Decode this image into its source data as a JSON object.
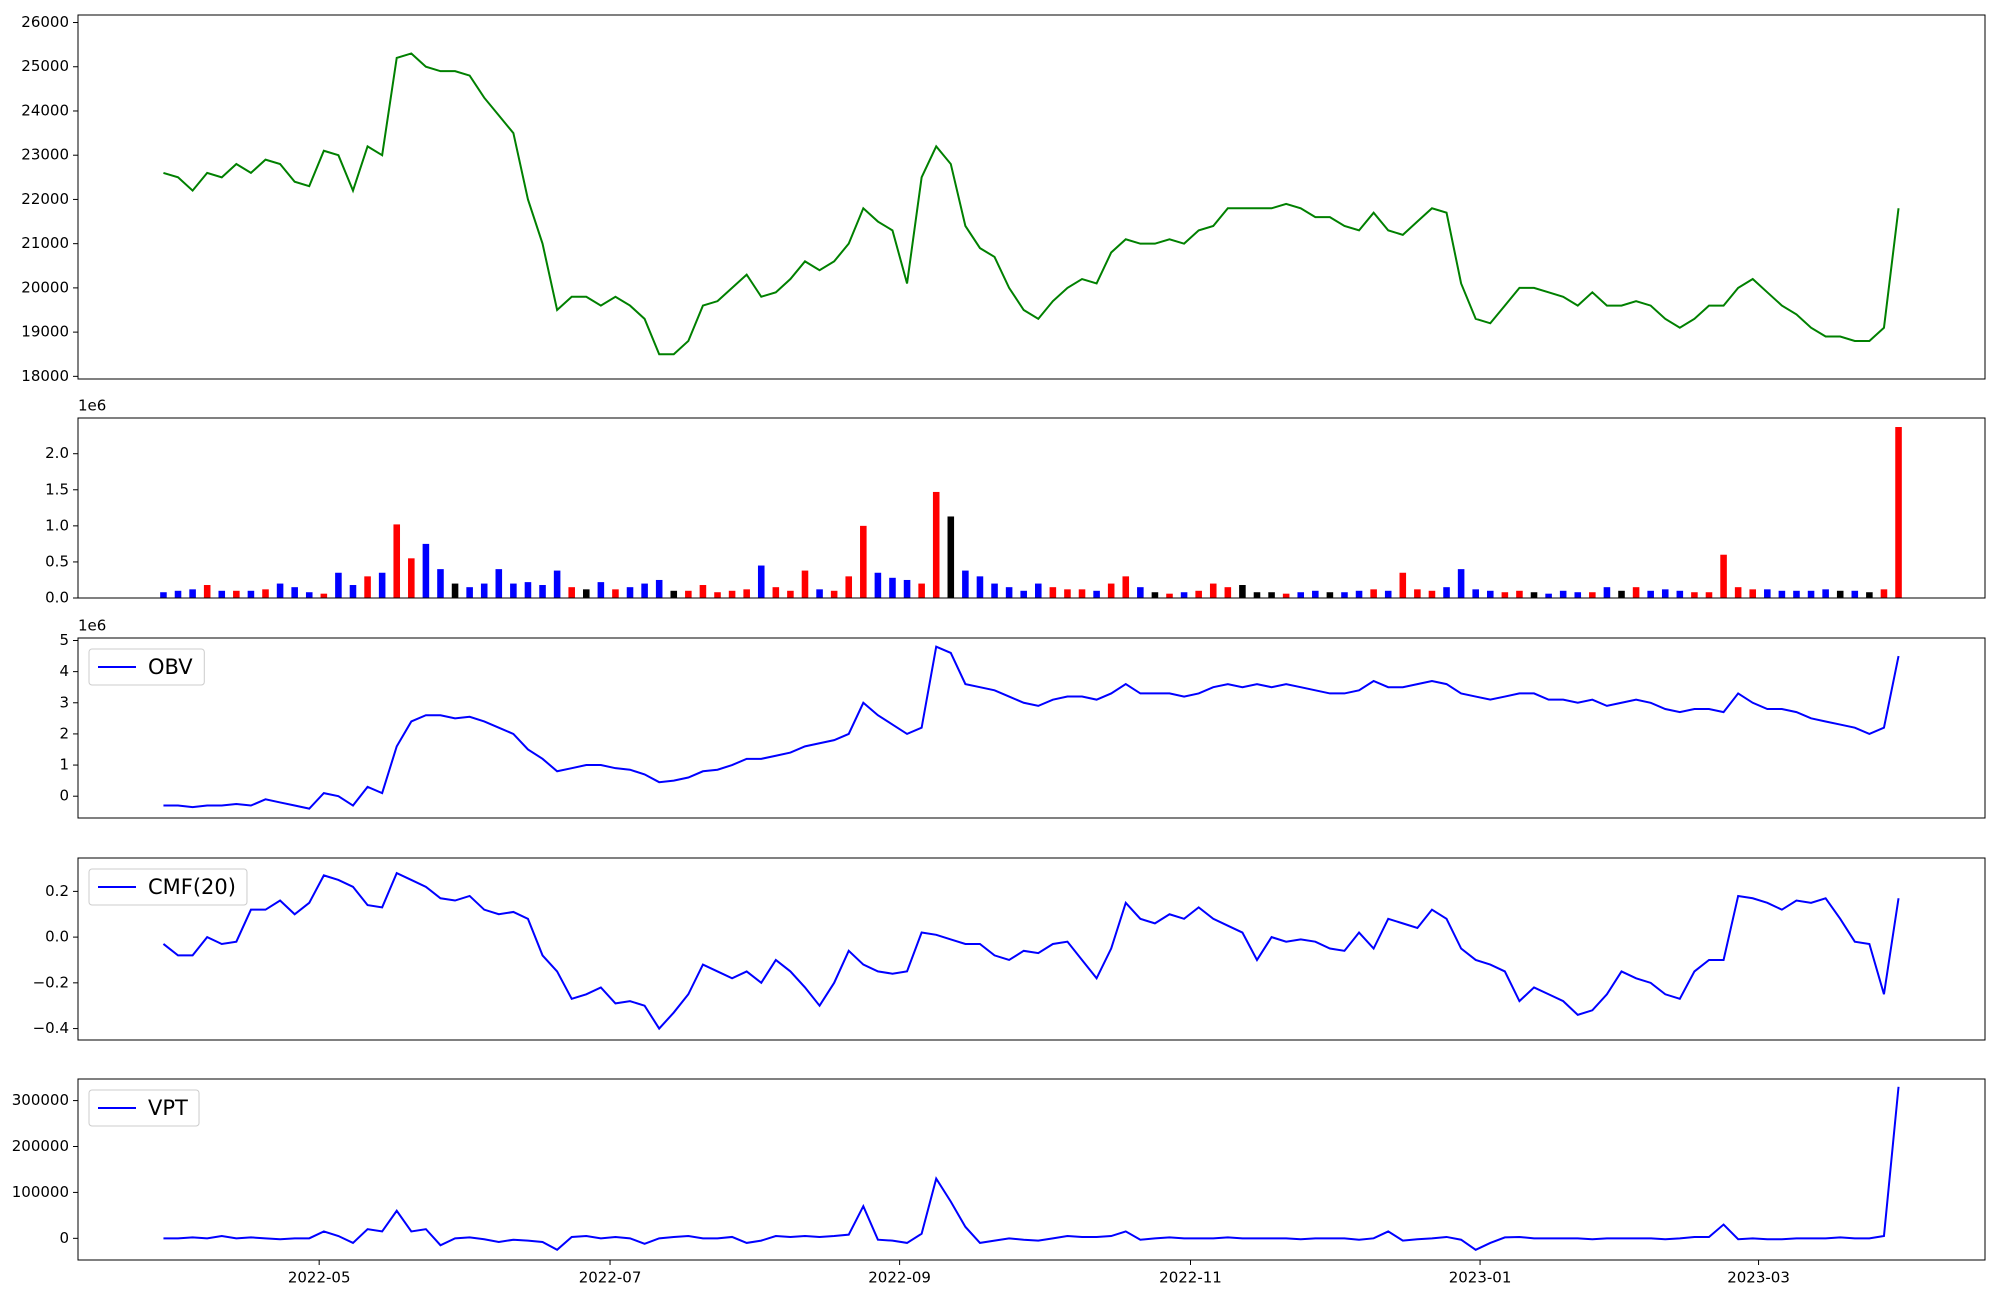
{
  "chart_data": [
    {
      "type": "line",
      "color": "#008000",
      "xlim": [
        -5.86,
        124.93
      ],
      "ylim": [
        17940,
        26170
      ],
      "yticks": [
        18000,
        19000,
        20000,
        21000,
        22000,
        23000,
        24000,
        25000,
        26000
      ],
      "values": [
        22600,
        22500,
        22200,
        22600,
        22500,
        22800,
        22600,
        22900,
        22800,
        22400,
        22300,
        23100,
        23000,
        22200,
        23200,
        23000,
        25200,
        25300,
        25000,
        24900,
        24900,
        24800,
        24300,
        23900,
        23500,
        22000,
        21000,
        19500,
        19800,
        19800,
        19600,
        19800,
        19600,
        19300,
        18500,
        18500,
        18800,
        19600,
        19700,
        20000,
        20300,
        19800,
        19900,
        20200,
        20600,
        20400,
        20600,
        21000,
        21800,
        21500,
        21300,
        20100,
        22500,
        23200,
        22800,
        21400,
        20900,
        20700,
        20000,
        19500,
        19300,
        19700,
        20000,
        20200,
        20100,
        20800,
        21100,
        21000,
        21000,
        21100,
        21000,
        21300,
        21400,
        21800,
        21800,
        21800,
        21800,
        21900,
        21800,
        21600,
        21600,
        21400,
        21300,
        21700,
        21300,
        21200,
        21500,
        21800,
        21700,
        20100,
        19300,
        19200,
        19600,
        20000,
        20000,
        19900,
        19800,
        19600,
        19900,
        19600,
        19600,
        19700,
        19600,
        19300,
        19100,
        19300,
        19600,
        19600,
        20000,
        20200,
        19900,
        19600,
        19400,
        19100,
        18900,
        18900,
        18800,
        18800,
        19100,
        21800
      ]
    },
    {
      "type": "bar",
      "offset_label": "1e6",
      "xlim": [
        -5.86,
        124.93
      ],
      "ylim": [
        0,
        2.495
      ],
      "yticks": [
        {
          "value": 0,
          "label": "0.0"
        },
        0.5,
        {
          "value": 1,
          "label": "1.0"
        },
        1.5,
        {
          "value": 2,
          "label": "2.0"
        }
      ],
      "values": [
        0.08,
        0.1,
        0.12,
        0.18,
        0.1,
        0.1,
        0.1,
        0.12,
        0.2,
        0.15,
        0.08,
        0.06,
        0.35,
        0.18,
        0.3,
        0.35,
        1.02,
        0.55,
        0.75,
        0.4,
        0.2,
        0.15,
        0.2,
        0.4,
        0.2,
        0.22,
        0.18,
        0.38,
        0.15,
        0.12,
        0.22,
        0.12,
        0.15,
        0.2,
        0.25,
        0.1,
        0.1,
        0.18,
        0.08,
        0.1,
        0.12,
        0.45,
        0.15,
        0.1,
        0.38,
        0.12,
        0.1,
        0.3,
        1.0,
        0.35,
        0.28,
        0.25,
        0.2,
        1.47,
        1.13,
        0.38,
        0.3,
        0.2,
        0.15,
        0.1,
        0.2,
        0.15,
        0.12,
        0.12,
        0.1,
        0.2,
        0.3,
        0.15,
        0.08,
        0.06,
        0.08,
        0.1,
        0.2,
        0.15,
        0.18,
        0.08,
        0.08,
        0.06,
        0.08,
        0.1,
        0.08,
        0.08,
        0.1,
        0.12,
        0.1,
        0.35,
        0.12,
        0.1,
        0.15,
        0.4,
        0.12,
        0.1,
        0.08,
        0.1,
        0.08,
        0.06,
        0.1,
        0.08,
        0.08,
        0.15,
        0.1,
        0.15,
        0.1,
        0.12,
        0.1,
        0.08,
        0.08,
        0.6,
        0.15,
        0.12,
        0.12,
        0.1,
        0.1,
        0.1,
        0.12,
        0.1,
        0.1,
        0.08,
        0.12,
        2.37
      ],
      "colors": [
        "blue",
        "blue",
        "blue",
        "red",
        "blue",
        "red",
        "blue",
        "red",
        "blue",
        "blue",
        "blue",
        "red",
        "blue",
        "blue",
        "red",
        "blue",
        "red",
        "red",
        "blue",
        "blue",
        "black",
        "blue",
        "blue",
        "blue",
        "blue",
        "blue",
        "blue",
        "blue",
        "red",
        "black",
        "blue",
        "red",
        "blue",
        "blue",
        "blue",
        "black",
        "red",
        "red",
        "red",
        "red",
        "red",
        "blue",
        "red",
        "red",
        "red",
        "blue",
        "red",
        "red",
        "red",
        "blue",
        "blue",
        "blue",
        "red",
        "red",
        "black",
        "blue",
        "blue",
        "blue",
        "blue",
        "blue",
        "blue",
        "red",
        "red",
        "red",
        "blue",
        "red",
        "red",
        "blue",
        "black",
        "red",
        "blue",
        "red",
        "red",
        "red",
        "black",
        "black",
        "black",
        "red",
        "blue",
        "blue",
        "black",
        "blue",
        "blue",
        "red",
        "blue",
        "red",
        "red",
        "red",
        "blue",
        "blue",
        "blue",
        "blue",
        "red",
        "red",
        "black",
        "blue",
        "blue",
        "blue",
        "red",
        "blue",
        "black",
        "red",
        "blue",
        "blue",
        "blue",
        "red",
        "red",
        "red",
        "red",
        "red",
        "blue",
        "blue",
        "blue",
        "blue",
        "blue",
        "black",
        "blue",
        "black",
        "red",
        "red"
      ]
    },
    {
      "type": "line",
      "offset_label": "1e6",
      "xlim": [
        -5.86,
        124.93
      ],
      "ylim": [
        -0.7,
        5.08
      ],
      "yticks": [
        0,
        1,
        2,
        3,
        4,
        5
      ],
      "series": [
        {
          "name": "OBV",
          "color": "#0000ff",
          "values": [
            -0.3,
            -0.3,
            -0.35,
            -0.3,
            -0.3,
            -0.25,
            -0.3,
            -0.1,
            -0.2,
            -0.3,
            -0.4,
            0.1,
            0.0,
            -0.3,
            0.3,
            0.1,
            1.6,
            2.4,
            2.6,
            2.6,
            2.5,
            2.55,
            2.4,
            2.2,
            2.0,
            1.5,
            1.2,
            0.8,
            0.9,
            1.0,
            1.0,
            0.9,
            0.85,
            0.7,
            0.45,
            0.5,
            0.6,
            0.8,
            0.85,
            1.0,
            1.2,
            1.2,
            1.3,
            1.4,
            1.6,
            1.7,
            1.8,
            2.0,
            3.0,
            2.6,
            2.3,
            2.0,
            2.2,
            4.8,
            4.6,
            3.6,
            3.5,
            3.4,
            3.2,
            3.0,
            2.9,
            3.1,
            3.2,
            3.2,
            3.1,
            3.3,
            3.6,
            3.3,
            3.3,
            3.3,
            3.2,
            3.3,
            3.5,
            3.6,
            3.5,
            3.6,
            3.5,
            3.6,
            3.5,
            3.4,
            3.3,
            3.3,
            3.4,
            3.7,
            3.5,
            3.5,
            3.6,
            3.7,
            3.6,
            3.3,
            3.2,
            3.1,
            3.2,
            3.3,
            3.3,
            3.1,
            3.1,
            3.0,
            3.1,
            2.9,
            3.0,
            3.1,
            3.0,
            2.8,
            2.7,
            2.8,
            2.8,
            2.7,
            3.3,
            3.0,
            2.8,
            2.8,
            2.7,
            2.5,
            2.4,
            2.3,
            2.2,
            2.0,
            2.2,
            4.5
          ]
        }
      ]
    },
    {
      "type": "line",
      "xlim": [
        -5.86,
        124.93
      ],
      "ylim": [
        -0.45,
        0.346
      ],
      "yticks": [
        {
          "value": -0.4,
          "label": "−0.4"
        },
        {
          "value": -0.2,
          "label": "−0.2"
        },
        {
          "value": 0,
          "label": "0.0"
        },
        0.2
      ],
      "series": [
        {
          "name": "CMF(20)",
          "color": "#0000ff",
          "values": [
            -0.03,
            -0.08,
            -0.08,
            0.0,
            -0.03,
            -0.02,
            0.12,
            0.12,
            0.16,
            0.1,
            0.15,
            0.27,
            0.25,
            0.22,
            0.14,
            0.13,
            0.28,
            0.25,
            0.22,
            0.17,
            0.16,
            0.18,
            0.12,
            0.1,
            0.11,
            0.08,
            -0.08,
            -0.15,
            -0.27,
            -0.25,
            -0.22,
            -0.29,
            -0.28,
            -0.3,
            -0.4,
            -0.33,
            -0.25,
            -0.12,
            -0.15,
            -0.18,
            -0.15,
            -0.2,
            -0.1,
            -0.15,
            -0.22,
            -0.3,
            -0.2,
            -0.06,
            -0.12,
            -0.15,
            -0.16,
            -0.15,
            0.02,
            0.01,
            -0.01,
            -0.03,
            -0.03,
            -0.08,
            -0.1,
            -0.06,
            -0.07,
            -0.03,
            -0.02,
            -0.1,
            -0.18,
            -0.05,
            0.15,
            0.08,
            0.06,
            0.1,
            0.08,
            0.13,
            0.08,
            0.05,
            0.02,
            -0.1,
            0.0,
            -0.02,
            -0.01,
            -0.02,
            -0.05,
            -0.06,
            0.02,
            -0.05,
            0.08,
            0.06,
            0.04,
            0.12,
            0.08,
            -0.05,
            -0.1,
            -0.12,
            -0.15,
            -0.28,
            -0.22,
            -0.25,
            -0.28,
            -0.34,
            -0.32,
            -0.25,
            -0.15,
            -0.18,
            -0.2,
            -0.25,
            -0.27,
            -0.15,
            -0.1,
            -0.1,
            0.18,
            0.17,
            0.15,
            0.12,
            0.16,
            0.15,
            0.17,
            0.08,
            -0.02,
            -0.03,
            -0.25,
            0.17
          ]
        }
      ]
    },
    {
      "type": "line",
      "xlim": [
        -5.86,
        124.93
      ],
      "ylim": [
        -47200,
        347000
      ],
      "yticks": [
        0,
        100000,
        200000,
        300000
      ],
      "xticks": [
        {
          "value": 10.68,
          "label": "2022-05"
        },
        {
          "value": 30.63,
          "label": "2022-07"
        },
        {
          "value": 50.49,
          "label": "2022-09"
        },
        {
          "value": 70.44,
          "label": "2022-11"
        },
        {
          "value": 90.3,
          "label": "2023-01"
        },
        {
          "value": 109.4,
          "label": "2023-03"
        }
      ],
      "series": [
        {
          "name": "VPT",
          "color": "#0000ff",
          "values": [
            0,
            0,
            2000,
            0,
            5000,
            0,
            2000,
            0,
            -2000,
            0,
            0,
            15000,
            5000,
            -10000,
            20000,
            15000,
            60000,
            15000,
            20000,
            -15000,
            0,
            2000,
            -2000,
            -8000,
            -3000,
            -5000,
            -8000,
            -25000,
            3000,
            5000,
            0,
            3000,
            0,
            -12000,
            0,
            3000,
            5000,
            0,
            0,
            3000,
            -10000,
            -5000,
            5000,
            3000,
            5000,
            3000,
            5000,
            8000,
            70000,
            -3000,
            -5000,
            -10000,
            10000,
            130000,
            80000,
            25000,
            -10000,
            -5000,
            0,
            -3000,
            -5000,
            0,
            5000,
            3000,
            3000,
            5000,
            15000,
            -3000,
            0,
            2000,
            0,
            0,
            0,
            2000,
            0,
            0,
            0,
            0,
            -2000,
            0,
            0,
            0,
            -3000,
            0,
            15000,
            -5000,
            -2000,
            0,
            3000,
            -3000,
            -25000,
            -10000,
            2000,
            3000,
            0,
            0,
            0,
            0,
            -2000,
            0,
            0,
            0,
            0,
            -2000,
            0,
            3000,
            3000,
            30000,
            -2000,
            0,
            -2000,
            -2000,
            0,
            0,
            0,
            2000,
            0,
            0,
            5000,
            330000
          ]
        }
      ]
    }
  ]
}
